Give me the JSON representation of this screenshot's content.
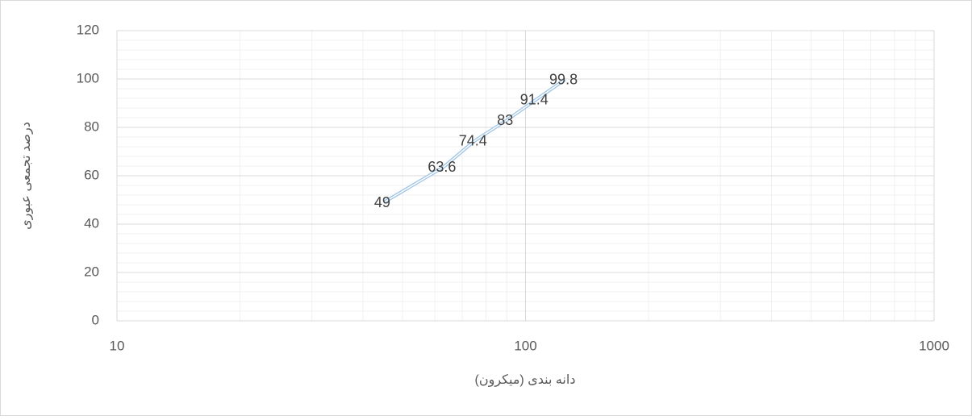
{
  "chart_data": {
    "type": "line",
    "x_label": "دانه بندی (میکرون)",
    "y_label": "درصد تجمعی عبوری",
    "x": [
      45,
      63,
      75,
      90,
      106,
      125
    ],
    "values": [
      49,
      63.6,
      74.4,
      83,
      91.4,
      99.8
    ],
    "color": "#9dc3e6",
    "x_log": true,
    "xlim": [
      10,
      1000
    ],
    "xticks": [
      10,
      100,
      1000
    ],
    "ylim": [
      0,
      120
    ],
    "yticks": [
      0,
      20,
      40,
      60,
      80,
      100,
      120
    ],
    "grid": true,
    "minor_grid": true,
    "data_labels": true
  }
}
